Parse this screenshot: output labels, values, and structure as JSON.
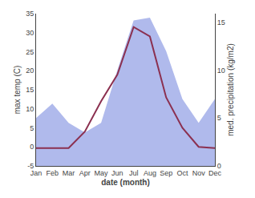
{
  "chart_data": {
    "type": "line",
    "xlabel": "date (month)",
    "ylabel": "max temp (C)",
    "y2label": "med. precipitation (kg/m2)",
    "categories": [
      "Jan",
      "Feb",
      "Mar",
      "Apr",
      "May",
      "Jun",
      "Jul",
      "Aug",
      "Sep",
      "Oct",
      "Nov",
      "Dec"
    ],
    "series": [
      {
        "type": "area",
        "axis": "y2",
        "color": "#b0baec",
        "values": [
          5.0,
          6.5,
          4.5,
          3.5,
          4.5,
          10.0,
          15.2,
          15.5,
          12.0,
          7.0,
          4.5,
          7.0
        ]
      },
      {
        "type": "line",
        "color": "#8B3050",
        "values": [
          -0.3,
          -0.3,
          -0.3,
          4.0,
          12.0,
          19.0,
          31.5,
          29.0,
          13.0,
          5.0,
          0.0,
          -0.3
        ]
      }
    ],
    "ylim": [
      -5,
      35
    ],
    "yticks": [
      -5,
      0,
      5,
      10,
      15,
      20,
      25,
      30,
      35
    ],
    "y2lim": [
      0,
      15.909
    ],
    "y2ticks": [
      0,
      5,
      10,
      15
    ],
    "grid": false,
    "legend": false
  }
}
